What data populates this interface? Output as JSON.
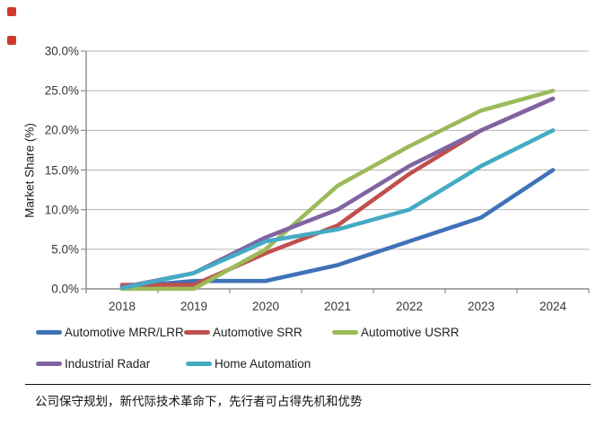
{
  "markers": {
    "count": 2,
    "color": "#cf3a2d"
  },
  "chart_data": {
    "type": "line",
    "title": "",
    "xlabel": "",
    "ylabel": "Market Share (%)",
    "ylim": [
      0,
      30
    ],
    "y_tick_labels": [
      "0.0%",
      "5.0%",
      "10.0%",
      "15.0%",
      "20.0%",
      "25.0%",
      "30.0%"
    ],
    "grid": true,
    "legend_position": "bottom",
    "categories": [
      "2018",
      "2019",
      "2020",
      "2021",
      "2022",
      "2023",
      "2024"
    ],
    "series": [
      {
        "name": "Automotive MRR/LRR",
        "color": "#3f72b7",
        "values": [
          0.2,
          1.0,
          1.0,
          3.0,
          6.0,
          9.0,
          15.0
        ]
      },
      {
        "name": "Automotive SRR",
        "color": "#c0504d",
        "values": [
          0.5,
          0.5,
          4.5,
          8.0,
          14.5,
          20.0,
          24.0
        ]
      },
      {
        "name": "Automotive USRR",
        "color": "#9bbb59",
        "values": [
          0.0,
          0.0,
          5.0,
          13.0,
          18.0,
          22.5,
          25.0
        ]
      },
      {
        "name": "Industrial Radar",
        "color": "#8064a2",
        "values": [
          0.2,
          2.0,
          6.5,
          10.0,
          15.5,
          20.0,
          24.0
        ]
      },
      {
        "name": "Home Automation",
        "color": "#44abc4",
        "values": [
          0.1,
          2.0,
          6.0,
          7.5,
          10.0,
          15.5,
          20.0
        ]
      }
    ]
  },
  "caption": {
    "text": "公司保守规划，新代际技术革命下，先行者可占得先机和优势"
  }
}
